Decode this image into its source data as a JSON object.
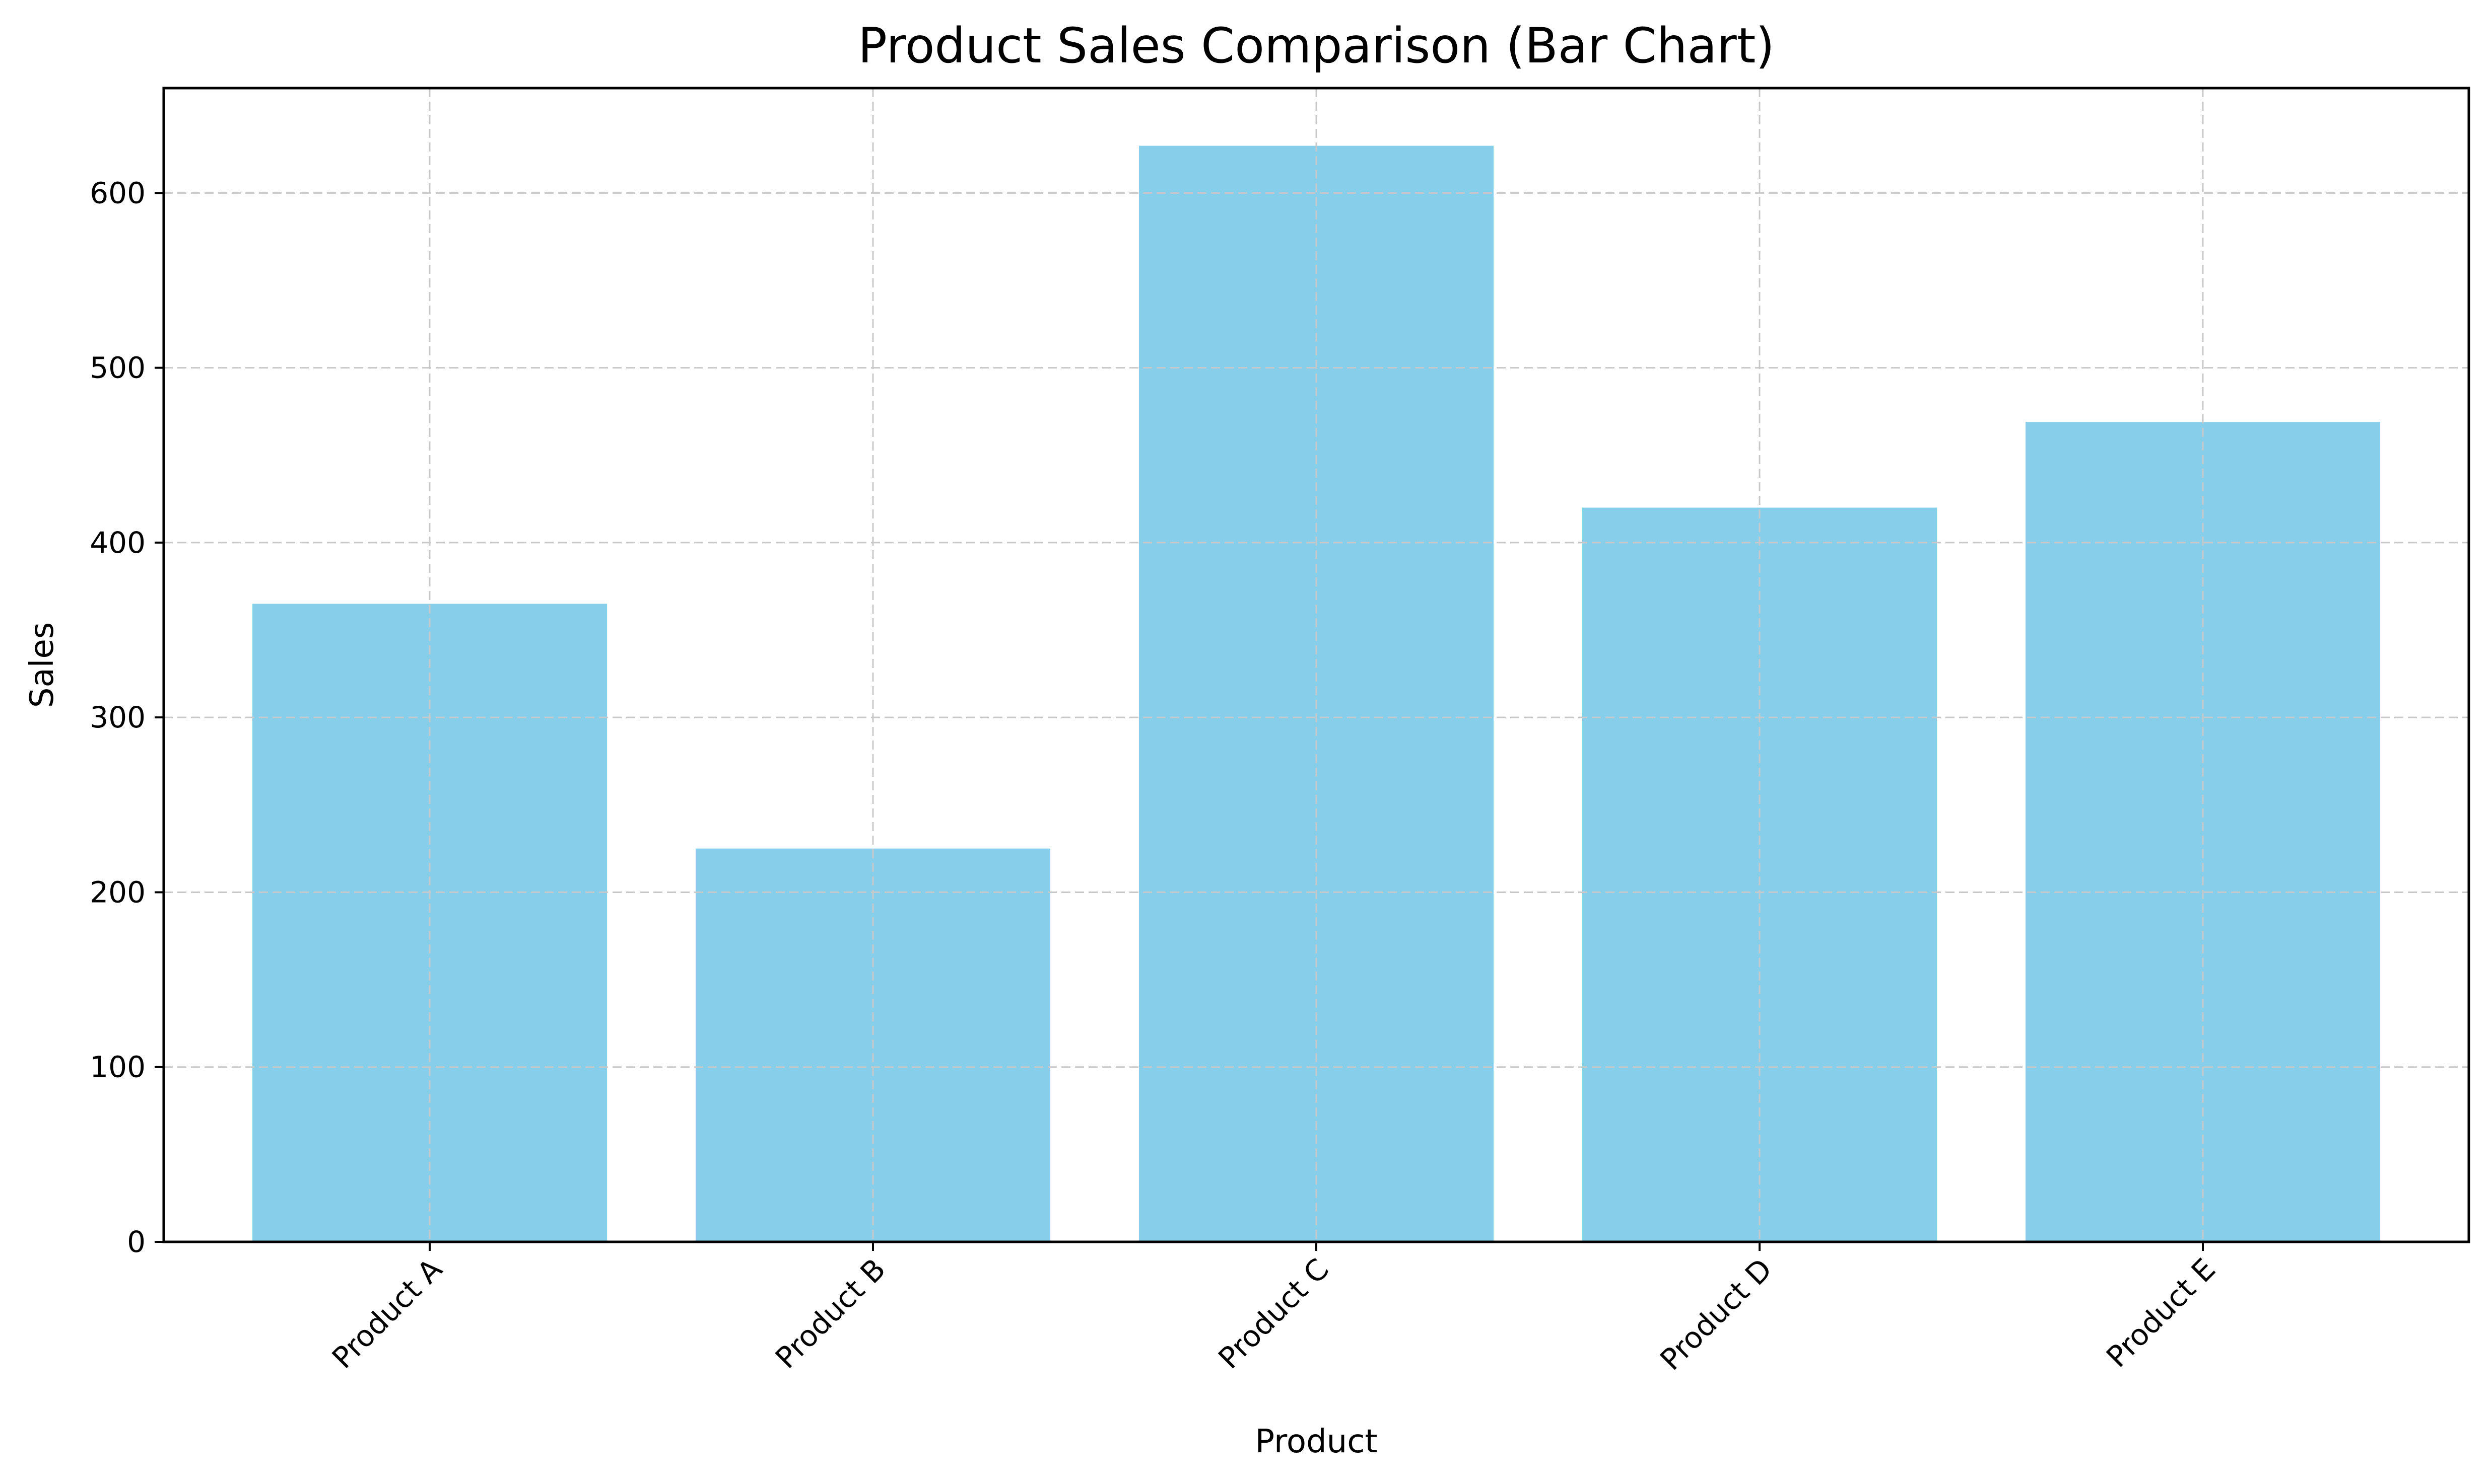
{
  "chart_data": {
    "type": "bar",
    "title": "Product Sales Comparison (Bar Chart)",
    "xlabel": "Product",
    "ylabel": "Sales",
    "categories": [
      "Product A",
      "Product B",
      "Product C",
      "Product D",
      "Product E"
    ],
    "values": [
      365,
      225,
      627,
      420,
      469
    ],
    "ylim": [
      0,
      660
    ],
    "yticks": [
      0,
      100,
      200,
      300,
      400,
      500,
      600
    ],
    "ytick_labels": [
      "0",
      "100",
      "200",
      "300",
      "400",
      "500",
      "600"
    ],
    "xtick_rotation_deg": 45,
    "grid": true,
    "grid_style": "dashed",
    "bar_color": "#87ceeb",
    "grid_color": "#c8c8c8",
    "legend": "none"
  }
}
